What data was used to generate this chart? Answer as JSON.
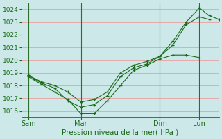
{
  "xlabel": "Pression niveau de la mer( hPa )",
  "bg_color": "#cce8e8",
  "plot_bg_color": "#cce8e8",
  "grid_h_color": "#e8a0a0",
  "grid_v_color": "#2d6e2d",
  "line_color": "#1a6b1a",
  "tick_label_color": "#1a6b1a",
  "axis_label_color": "#1a6b1a",
  "ylim": [
    1015.5,
    1024.5
  ],
  "yticks": [
    1016,
    1017,
    1018,
    1019,
    1020,
    1021,
    1022,
    1023,
    1024
  ],
  "xlim": [
    0,
    60
  ],
  "xtick_positions": [
    2,
    18,
    42,
    54
  ],
  "xtick_labels": [
    "Sam",
    "Mar",
    "Dim",
    "Lun"
  ],
  "vline_positions": [
    2,
    18,
    42,
    54
  ],
  "series": [
    {
      "x": [
        2,
        4,
        6,
        10,
        14,
        18,
        22,
        26,
        30,
        34,
        38,
        42,
        46,
        50,
        54,
        57,
        60
      ],
      "y": [
        1018.8,
        1018.5,
        1018.2,
        1017.8,
        1016.8,
        1016.3,
        1016.5,
        1017.2,
        1018.7,
        1019.4,
        1019.7,
        1020.3,
        1021.5,
        1023.0,
        1024.1,
        1023.5,
        1023.2
      ]
    },
    {
      "x": [
        2,
        6,
        10,
        14,
        18,
        22,
        26,
        30,
        34,
        38,
        42,
        46,
        50,
        54,
        57
      ],
      "y": [
        1018.8,
        1018.3,
        1018.0,
        1017.5,
        1016.7,
        1016.9,
        1017.5,
        1019.0,
        1019.6,
        1019.9,
        1020.3,
        1021.2,
        1022.8,
        1023.4,
        1023.2
      ]
    },
    {
      "x": [
        2,
        6,
        10,
        14,
        18,
        22,
        26,
        30,
        34,
        38,
        42,
        46,
        50,
        54
      ],
      "y": [
        1018.7,
        1018.1,
        1017.5,
        1016.9,
        1015.8,
        1015.8,
        1016.8,
        1018.0,
        1019.2,
        1019.6,
        1020.1,
        1020.4,
        1020.4,
        1020.2
      ]
    }
  ]
}
